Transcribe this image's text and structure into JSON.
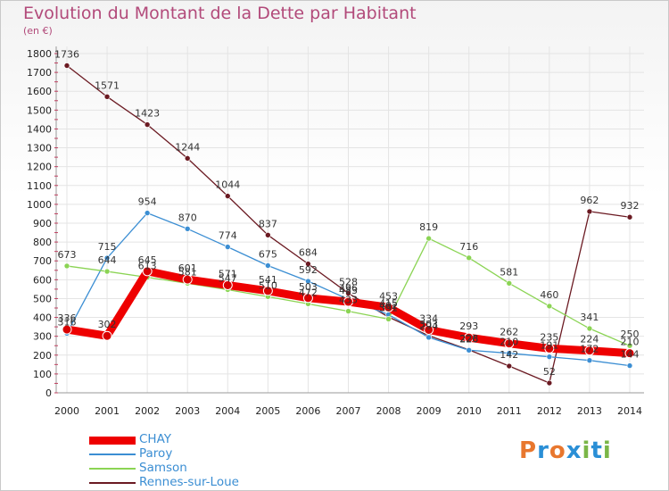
{
  "header": {
    "title": "Evolution du Montant de la Dette par Habitant",
    "unit": "(en €)"
  },
  "logo": {
    "text": "Proxiti",
    "colors": [
      "#e8772e",
      "#2a8fd6",
      "#e8772e",
      "#2a8fd6",
      "#7ab648",
      "#2a8fd6",
      "#7ab648"
    ]
  },
  "chart_data": {
    "type": "line",
    "title": "Evolution du Montant de la Dette par Habitant",
    "ylabel": "(en €)",
    "xlabel": "",
    "ylim": [
      0,
      1800
    ],
    "yticks": [
      0,
      100,
      200,
      300,
      400,
      500,
      600,
      700,
      800,
      900,
      1000,
      1100,
      1200,
      1300,
      1400,
      1500,
      1600,
      1700,
      1800
    ],
    "categories": [
      "2000",
      "2001",
      "2002",
      "2003",
      "2004",
      "2005",
      "2006",
      "2007",
      "2008",
      "2009",
      "2010",
      "2011",
      "2012",
      "2013",
      "2014"
    ],
    "grid": true,
    "legend": "bottom-left",
    "series": [
      {
        "name": "Rennes-sur-Loue",
        "color": "#6b1a22",
        "values": [
          1736,
          1571,
          1423,
          1244,
          1044,
          837,
          684,
          528,
          402,
          303,
          228,
          142,
          52,
          962,
          932
        ]
      },
      {
        "name": "Paroy",
        "color": "#3b8ed3",
        "values": [
          316,
          715,
          954,
          870,
          774,
          675,
          592,
          496,
          415,
          294,
          226,
          210,
          191,
          172,
          144
        ]
      },
      {
        "name": "Samson",
        "color": "#8bd454",
        "values": [
          673,
          644,
          613,
          581,
          547,
          510,
          472,
          433,
          391,
          819,
          716,
          581,
          460,
          341,
          250
        ]
      },
      {
        "name": "CHAY",
        "color": "#ee0000",
        "values": [
          336,
          302,
          645,
          601,
          571,
          541,
          503,
          483,
          453,
          334,
          293,
          262,
          235,
          224,
          210
        ]
      }
    ],
    "legend_order": [
      "CHAY",
      "Paroy",
      "Samson",
      "Rennes-sur-Loue"
    ]
  }
}
